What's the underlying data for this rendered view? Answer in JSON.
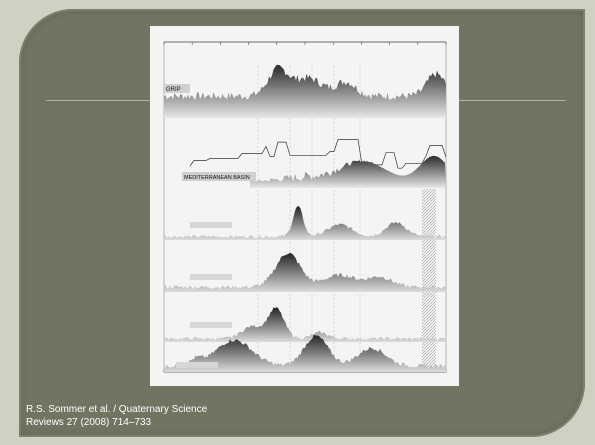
{
  "caption": {
    "line1": "R.S. Sommer et al. / Quaternary Science",
    "line2": "Reviews 27 (2008) 714–733"
  },
  "figure": {
    "top_record_label": "GRIP",
    "basin_label": "MEDITERRANEAN BASIN"
  },
  "colors": {
    "slide_background": "#d0d1c2",
    "frame": "#717461",
    "figure_background": "#f4f4f2",
    "caption_text": "#ffffff",
    "divider": "#a8b8a0"
  }
}
